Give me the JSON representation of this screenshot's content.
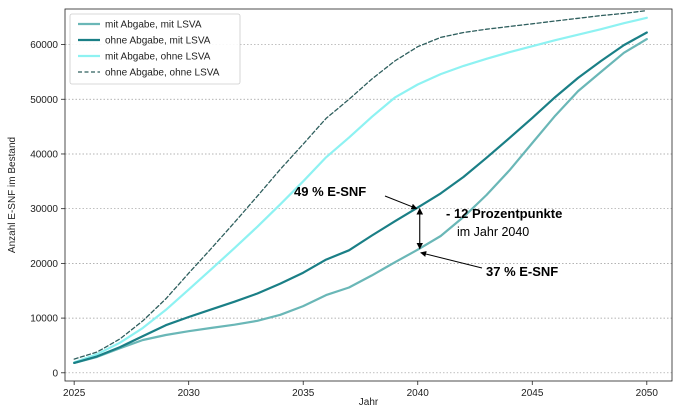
{
  "chart_data": {
    "type": "line",
    "xlabel": "Jahr",
    "ylabel": "Anzahl E-SNF im Bestand",
    "xlim": [
      2024.6,
      2051.1
    ],
    "ylim": [
      -1500,
      66500
    ],
    "xticks": [
      2025,
      2030,
      2035,
      2040,
      2045,
      2050
    ],
    "yticks": [
      0,
      10000,
      20000,
      30000,
      40000,
      50000,
      60000
    ],
    "grid": "horizontal dotted",
    "legend_position": "top-left",
    "x": [
      2025,
      2026,
      2027,
      2028,
      2029,
      2030,
      2031,
      2032,
      2033,
      2034,
      2035,
      2036,
      2037,
      2038,
      2039,
      2040,
      2041,
      2042,
      2043,
      2044,
      2045,
      2046,
      2047,
      2048,
      2049,
      2050
    ],
    "series": [
      {
        "name": "mit Abgabe, mit LSVA",
        "color": "#6ab7b7",
        "style": "solid",
        "values": [
          1800,
          2900,
          4500,
          6000,
          6900,
          7600,
          8200,
          8800,
          9500,
          10600,
          12200,
          14200,
          15600,
          17800,
          20200,
          22500,
          25000,
          28500,
          32500,
          37000,
          42000,
          47000,
          51500,
          55000,
          58500,
          61000
        ]
      },
      {
        "name": "ohne Abgabe, mit LSVA",
        "color": "#1a7f86",
        "style": "solid",
        "values": [
          1800,
          3000,
          4700,
          6700,
          8700,
          10200,
          11600,
          13000,
          14500,
          16300,
          18300,
          20700,
          22400,
          25100,
          27700,
          30200,
          32800,
          35800,
          39300,
          42900,
          46600,
          50400,
          53900,
          57000,
          59900,
          62200
        ]
      },
      {
        "name": "mit Abgabe, ohne LSVA",
        "color": "#8ef2f2",
        "style": "solid",
        "values": [
          1900,
          3400,
          5500,
          8200,
          11500,
          15200,
          19000,
          22800,
          26700,
          30800,
          35000,
          39400,
          43000,
          46800,
          50300,
          52700,
          54600,
          56100,
          57400,
          58600,
          59700,
          60800,
          61800,
          62800,
          63900,
          64900
        ]
      },
      {
        "name": "ohne Abgabe, ohne LSVA",
        "color": "#2f5f5e",
        "style": "dashed",
        "values": [
          2500,
          3800,
          6200,
          9500,
          13500,
          18200,
          22800,
          27500,
          32300,
          37200,
          41800,
          46500,
          50000,
          53700,
          57000,
          59600,
          61300,
          62200,
          62800,
          63300,
          63800,
          64300,
          64800,
          65300,
          65700,
          66200
        ]
      }
    ],
    "annotations": {
      "label_upper": "49 % E-SNF",
      "label_lower": "37 % E-SNF",
      "diff_label": "- 12 Prozentpunkte",
      "diff_sub": "im Jahr 2040",
      "arrow_year": 2040,
      "arrow_top": 30200,
      "arrow_bottom": 22500
    }
  }
}
